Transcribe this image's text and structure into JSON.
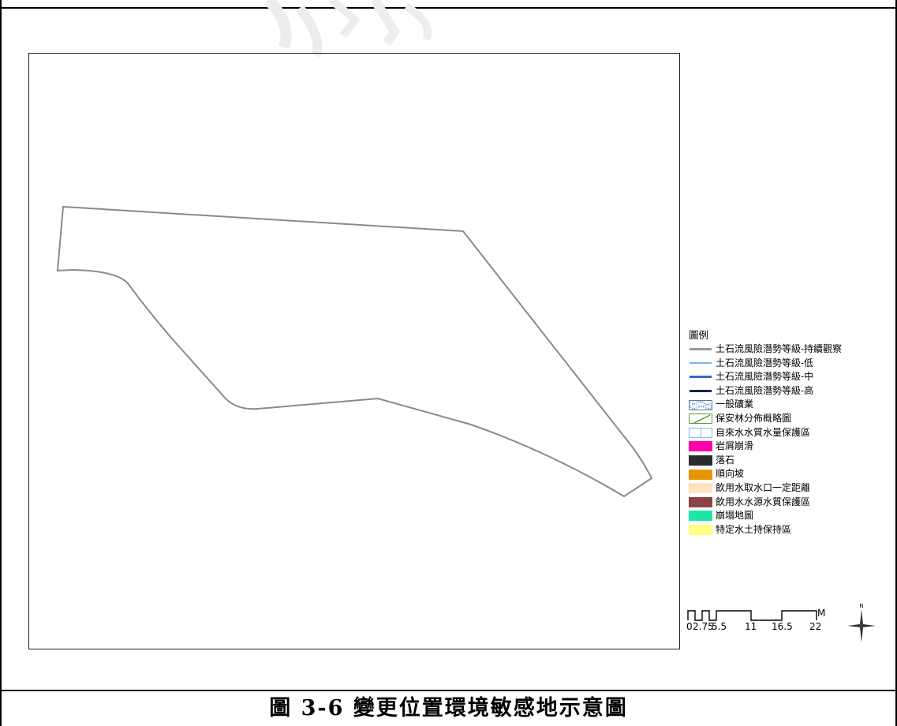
{
  "map": {
    "legend_title": "圖例",
    "legend_items": [
      {
        "label": "土石流風險潛勢等級-持續觀察",
        "kind": "line",
        "color": "#9a9a9a"
      },
      {
        "label": "土石流風險潛勢等級-低",
        "kind": "line",
        "color": "#7fb3e6"
      },
      {
        "label": "土石流風險潛勢等級-中",
        "kind": "line",
        "color": "#2a6fc4"
      },
      {
        "label": "土石流風險潛勢等級-高",
        "kind": "line",
        "color": "#15244f"
      },
      {
        "label": "一般礦業",
        "kind": "hatch",
        "color": "#4f7fa8"
      },
      {
        "label": "保安林分佈概略圖",
        "kind": "diagonal",
        "color": "#5c9a3a"
      },
      {
        "label": "自來水水質水量保護區",
        "kind": "outline",
        "color": "#8fb7d8"
      },
      {
        "label": "岩屑崩滑",
        "kind": "fill",
        "color": "#ff00aa"
      },
      {
        "label": "落石",
        "kind": "fill",
        "color": "#2b2b2b"
      },
      {
        "label": "順向坡",
        "kind": "fill",
        "color": "#e69500"
      },
      {
        "label": "飲用水取水口一定距離",
        "kind": "fill",
        "color": "#ffe3bf"
      },
      {
        "label": "飲用水水源水質保護區",
        "kind": "fill",
        "color": "#8b4343"
      },
      {
        "label": "崩塌地圖",
        "kind": "fill",
        "color": "#1de6a8"
      },
      {
        "label": "特定水土持保持區",
        "kind": "fill",
        "color": "#ffff80"
      }
    ],
    "scale_labels": [
      "0",
      "2.75",
      "5.5",
      "11",
      "16.5",
      "22"
    ],
    "scale_unit": "M",
    "north_label": "N",
    "parcel_outline_color": "#8a8a8a"
  },
  "caption": "圖 3-6 變更位置環境敏感地示意圖"
}
